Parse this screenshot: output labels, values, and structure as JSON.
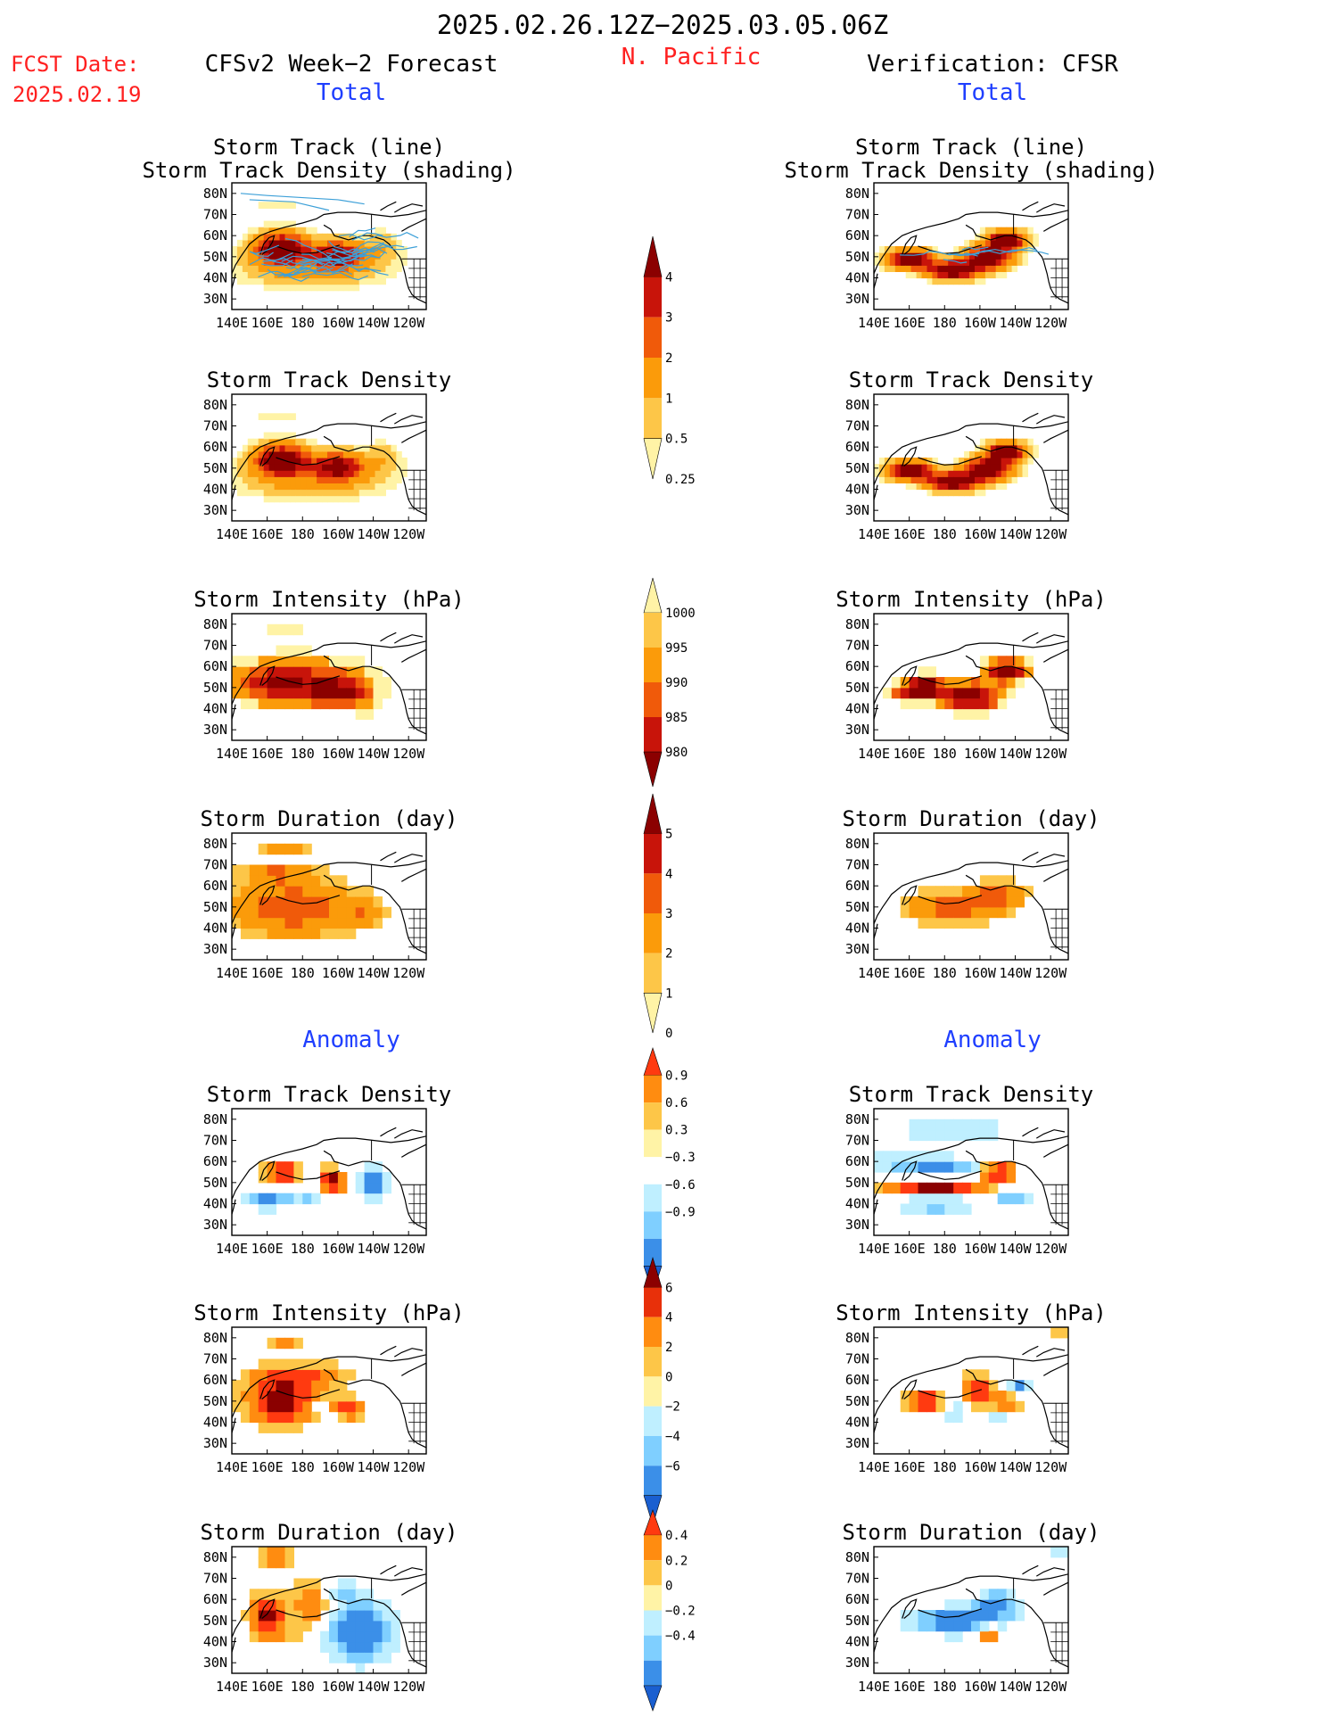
{
  "header": {
    "period": "2025.02.26.12Z−2025.03.05.06Z",
    "region": "N. Pacific",
    "fcst_date_label": "FCST Date:",
    "fcst_date_value": "2025.02.19",
    "forecast_title": "CFSv2 Week−2 Forecast",
    "verification_title": "Verification: CFSR",
    "total_label": "Total",
    "anomaly_label": "Anomaly"
  },
  "colors": {
    "black": "#000000",
    "red_text": "#ff2020",
    "blue_text": "#1f3fff",
    "track_line": "#3da0d8",
    "map_lines": "#000000"
  },
  "map_axes": {
    "lon_ticks": [
      "140E",
      "160E",
      "180",
      "160W",
      "140W",
      "120W"
    ],
    "lat_ticks": [
      "80N",
      "70N",
      "60N",
      "50N",
      "40N",
      "30N"
    ]
  },
  "panel_titles": {
    "track_line": "Storm Track (line)",
    "track_shading": "Storm Track Density (shading)",
    "density": "Storm Track Density",
    "intensity": "Storm Intensity (hPa)",
    "duration": "Storm Duration (day)"
  },
  "colorbars": {
    "density_total": {
      "labels": [
        "4",
        "3",
        "2",
        "1",
        "0.5",
        "0.25"
      ],
      "colors": [
        "#8b0000",
        "#c8140a",
        "#f05a0a",
        "#fb9b0a",
        "#fdc648",
        "#fff3a6"
      ]
    },
    "intensity_total": {
      "labels": [
        "1000",
        "995",
        "990",
        "985",
        "980"
      ],
      "colors": [
        "#fff3a6",
        "#fdc648",
        "#fb9b0a",
        "#f05a0a",
        "#c8140a",
        "#8b0000"
      ]
    },
    "duration_total": {
      "labels": [
        "5",
        "4",
        "3",
        "2",
        "1",
        "0"
      ],
      "colors": [
        "#8b0000",
        "#c8140a",
        "#f05a0a",
        "#fb9b0a",
        "#fdc648",
        "#fff3a6"
      ]
    },
    "density_anom": {
      "labels": [
        "0.9",
        "0.6",
        "0.3",
        "−0.3",
        "−0.6",
        "−0.9"
      ],
      "colors": [
        "#ff3a10",
        "#ff8c10",
        "#fdc648",
        "#fff3a6",
        "#ffffff",
        "#bfefff",
        "#7fcfff",
        "#3b8fe8",
        "#1a5fd0"
      ]
    },
    "intensity_anom": {
      "labels": [
        "6",
        "4",
        "2",
        "0",
        "−2",
        "−4",
        "−6"
      ],
      "colors": [
        "#8b0000",
        "#e8300a",
        "#ff8c10",
        "#fdc648",
        "#fff3a6",
        "#bfefff",
        "#7fcfff",
        "#3b8fe8",
        "#1a5fd0"
      ]
    },
    "duration_anom": {
      "labels": [
        "0.4",
        "0.2",
        "0",
        "−0.2",
        "−0.4"
      ],
      "colors": [
        "#ff3a10",
        "#ff8c10",
        "#fdc648",
        "#fff3a6",
        "#bfefff",
        "#7fcfff",
        "#3b8fe8",
        "#1a5fd0"
      ]
    }
  },
  "chart_data": [
    {
      "type": "heatmap",
      "column": "forecast",
      "section": "Total",
      "title": "Storm Track (line) / Storm Track Density (shading)",
      "max_value": 4,
      "main_centers": [
        "~165E 55N",
        "~160W 52N"
      ]
    },
    {
      "type": "heatmap",
      "column": "forecast",
      "section": "Total",
      "title": "Storm Track Density",
      "max_value": 4,
      "main_centers": [
        "~168E 53N",
        "~160W 50N"
      ]
    },
    {
      "type": "heatmap",
      "column": "forecast",
      "section": "Total",
      "title": "Storm Intensity (hPa)",
      "range": [
        980,
        1000
      ]
    },
    {
      "type": "heatmap",
      "column": "forecast",
      "section": "Total",
      "title": "Storm Duration (day)",
      "range": [
        0,
        5
      ]
    },
    {
      "type": "heatmap",
      "column": "verification",
      "section": "Total",
      "title": "Storm Track (line) / Storm Track Density (shading)",
      "max_value": 4
    },
    {
      "type": "heatmap",
      "column": "verification",
      "section": "Total",
      "title": "Storm Track Density",
      "max_value": 4
    },
    {
      "type": "heatmap",
      "column": "verification",
      "section": "Total",
      "title": "Storm Intensity (hPa)",
      "range": [
        980,
        1000
      ]
    },
    {
      "type": "heatmap",
      "column": "verification",
      "section": "Total",
      "title": "Storm Duration (day)",
      "range": [
        0,
        5
      ]
    },
    {
      "type": "heatmap",
      "column": "forecast",
      "section": "Anomaly",
      "title": "Storm Track Density",
      "range": [
        -0.9,
        0.9
      ]
    },
    {
      "type": "heatmap",
      "column": "forecast",
      "section": "Anomaly",
      "title": "Storm Intensity (hPa)",
      "range": [
        -6,
        6
      ]
    },
    {
      "type": "heatmap",
      "column": "forecast",
      "section": "Anomaly",
      "title": "Storm Duration (day)",
      "range": [
        -0.4,
        0.4
      ]
    },
    {
      "type": "heatmap",
      "column": "verification",
      "section": "Anomaly",
      "title": "Storm Track Density",
      "range": [
        -0.9,
        0.9
      ]
    },
    {
      "type": "heatmap",
      "column": "verification",
      "section": "Anomaly",
      "title": "Storm Intensity (hPa)",
      "range": [
        -6,
        6
      ]
    },
    {
      "type": "heatmap",
      "column": "verification",
      "section": "Anomaly",
      "title": "Storm Duration (day)",
      "range": [
        -0.4,
        0.4
      ]
    }
  ]
}
